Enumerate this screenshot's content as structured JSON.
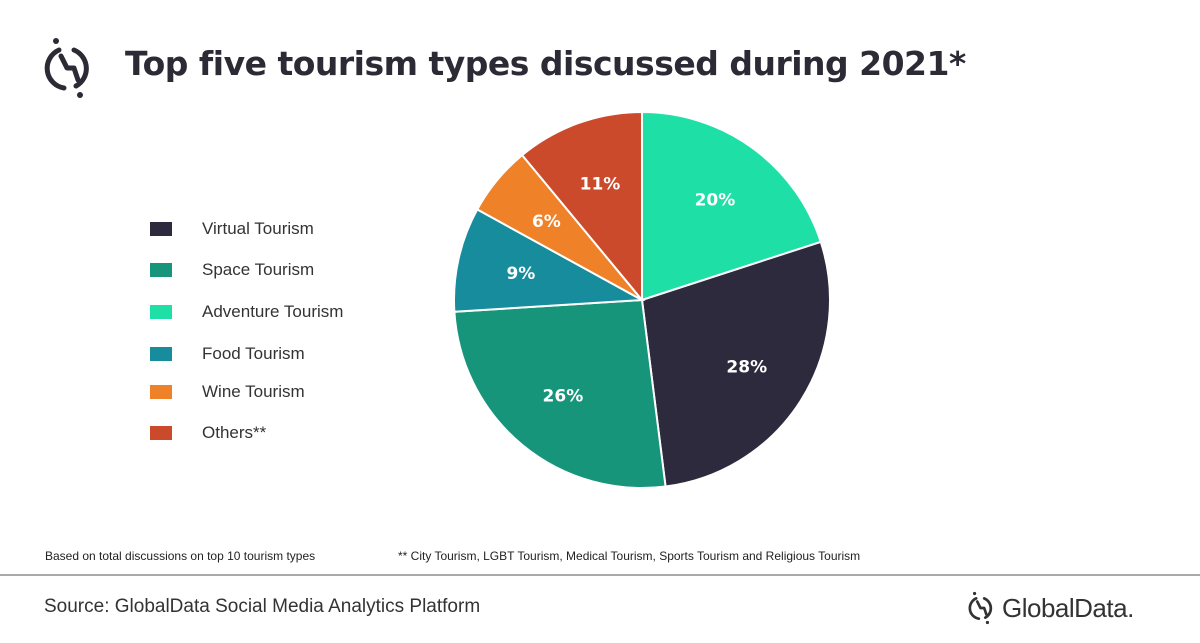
{
  "title": "Top five tourism types discussed during 2021*",
  "chart_data": {
    "type": "pie",
    "title": "Top five tourism types discussed during 2021*",
    "start": "top",
    "direction": "clockwise",
    "slices": [
      {
        "name": "Adventure Tourism",
        "value": 20,
        "label": "20%",
        "color": "#1ee0a6"
      },
      {
        "name": "Virtual Tourism",
        "value": 28,
        "label": "28%",
        "color": "#2d2a3d"
      },
      {
        "name": "Space Tourism",
        "value": 26,
        "label": "26%",
        "color": "#16957a"
      },
      {
        "name": "Food Tourism",
        "value": 9,
        "label": "9%",
        "color": "#168c9c"
      },
      {
        "name": "Wine Tourism",
        "value": 6,
        "label": "6%",
        "color": "#ef8128"
      },
      {
        "name": "Others**",
        "value": 11,
        "label": "11%",
        "color": "#cb4a2b"
      }
    ],
    "legend": {
      "placement": "left",
      "items": [
        {
          "label": "Virtual Tourism",
          "color": "#2d2a3d"
        },
        {
          "label": "Space Tourism",
          "color": "#16957a"
        },
        {
          "label": "Adventure Tourism",
          "color": "#1ee0a6"
        },
        {
          "label": "Food Tourism",
          "color": "#168c9c"
        },
        {
          "label": "Wine Tourism",
          "color": "#ef8128"
        },
        {
          "label": "Others**",
          "color": "#cb4a2b"
        }
      ]
    }
  },
  "notes": {
    "left": "Based on total discussions  on top 10  tourism types",
    "right": "** City Tourism, LGBT Tourism, Medical Tourism, Sports Tourism and Religious Tourism"
  },
  "source": "Source: GlobalData Social Media Analytics Platform",
  "brand": "GlobalData."
}
